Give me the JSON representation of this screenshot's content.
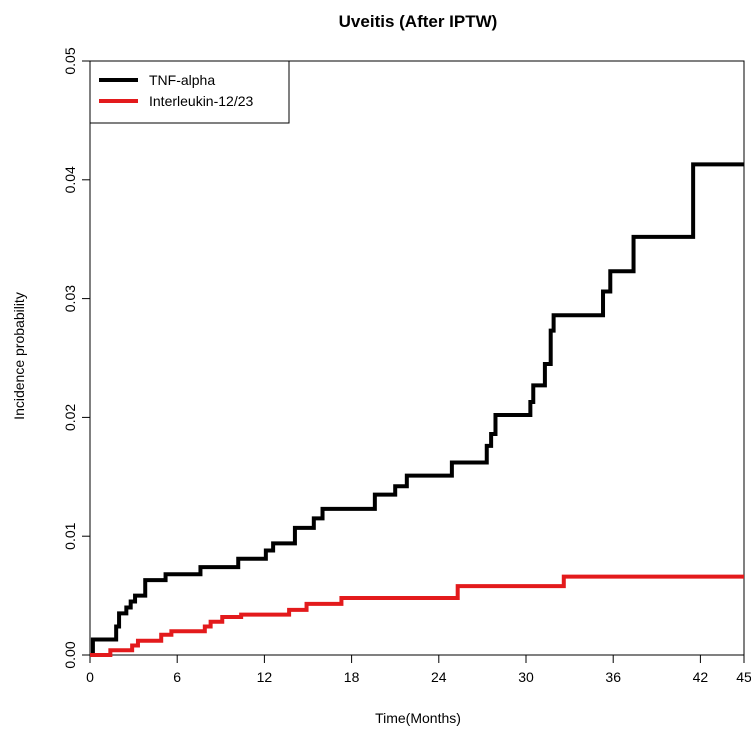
{
  "chart_data": {
    "type": "line",
    "step": true,
    "title": "Uveitis (After IPTW)",
    "xlabel": "Time(Months)",
    "ylabel": "Incidence probability",
    "xlim": [
      0,
      45
    ],
    "ylim": [
      0,
      0.05
    ],
    "xticks": [
      0,
      6,
      12,
      18,
      24,
      30,
      36,
      42,
      45
    ],
    "xtick_labels": [
      "0",
      "6",
      "12",
      "18",
      "24",
      "30",
      "36",
      "42",
      "45"
    ],
    "yticks": [
      0,
      0.01,
      0.02,
      0.03,
      0.04,
      0.05
    ],
    "ytick_labels": [
      "0.00",
      "0.01",
      "0.02",
      "0.03",
      "0.04",
      "0.05"
    ],
    "grid": false,
    "legend_position": "top-left",
    "series": [
      {
        "name": "TNF-alpha",
        "color": "#000000",
        "points": [
          [
            0,
            0
          ],
          [
            0.2,
            0.0013
          ],
          [
            1.8,
            0.0024
          ],
          [
            2.0,
            0.0035
          ],
          [
            2.5,
            0.004
          ],
          [
            2.8,
            0.0045
          ],
          [
            3.1,
            0.005
          ],
          [
            3.8,
            0.0063
          ],
          [
            5.2,
            0.0068
          ],
          [
            7.6,
            0.0074
          ],
          [
            10.2,
            0.0081
          ],
          [
            12.1,
            0.0088
          ],
          [
            12.6,
            0.0094
          ],
          [
            14.1,
            0.0107
          ],
          [
            15.4,
            0.0115
          ],
          [
            16.0,
            0.0123
          ],
          [
            19.6,
            0.0135
          ],
          [
            21.0,
            0.0142
          ],
          [
            21.8,
            0.0151
          ],
          [
            24.9,
            0.0162
          ],
          [
            27.3,
            0.0176
          ],
          [
            27.6,
            0.0186
          ],
          [
            27.9,
            0.0202
          ],
          [
            30.3,
            0.0213
          ],
          [
            30.5,
            0.0227
          ],
          [
            31.3,
            0.0245
          ],
          [
            31.7,
            0.0273
          ],
          [
            31.9,
            0.0286
          ],
          [
            35.3,
            0.0306
          ],
          [
            35.8,
            0.0323
          ],
          [
            37.4,
            0.0352
          ],
          [
            41.5,
            0.0413
          ],
          [
            45,
            0.0413
          ]
        ]
      },
      {
        "name": "Interleukin-12/23",
        "color": "#e31a1c",
        "points": [
          [
            0,
            0
          ],
          [
            1.4,
            0.0004
          ],
          [
            2.9,
            0.0008
          ],
          [
            3.3,
            0.0012
          ],
          [
            4.9,
            0.0017
          ],
          [
            5.6,
            0.002
          ],
          [
            7.9,
            0.0024
          ],
          [
            8.3,
            0.0028
          ],
          [
            9.1,
            0.0032
          ],
          [
            10.4,
            0.0034
          ],
          [
            13.7,
            0.0038
          ],
          [
            14.9,
            0.0043
          ],
          [
            17.3,
            0.0048
          ],
          [
            25.3,
            0.0058
          ],
          [
            32.6,
            0.0066
          ],
          [
            45,
            0.0066
          ]
        ]
      }
    ]
  }
}
